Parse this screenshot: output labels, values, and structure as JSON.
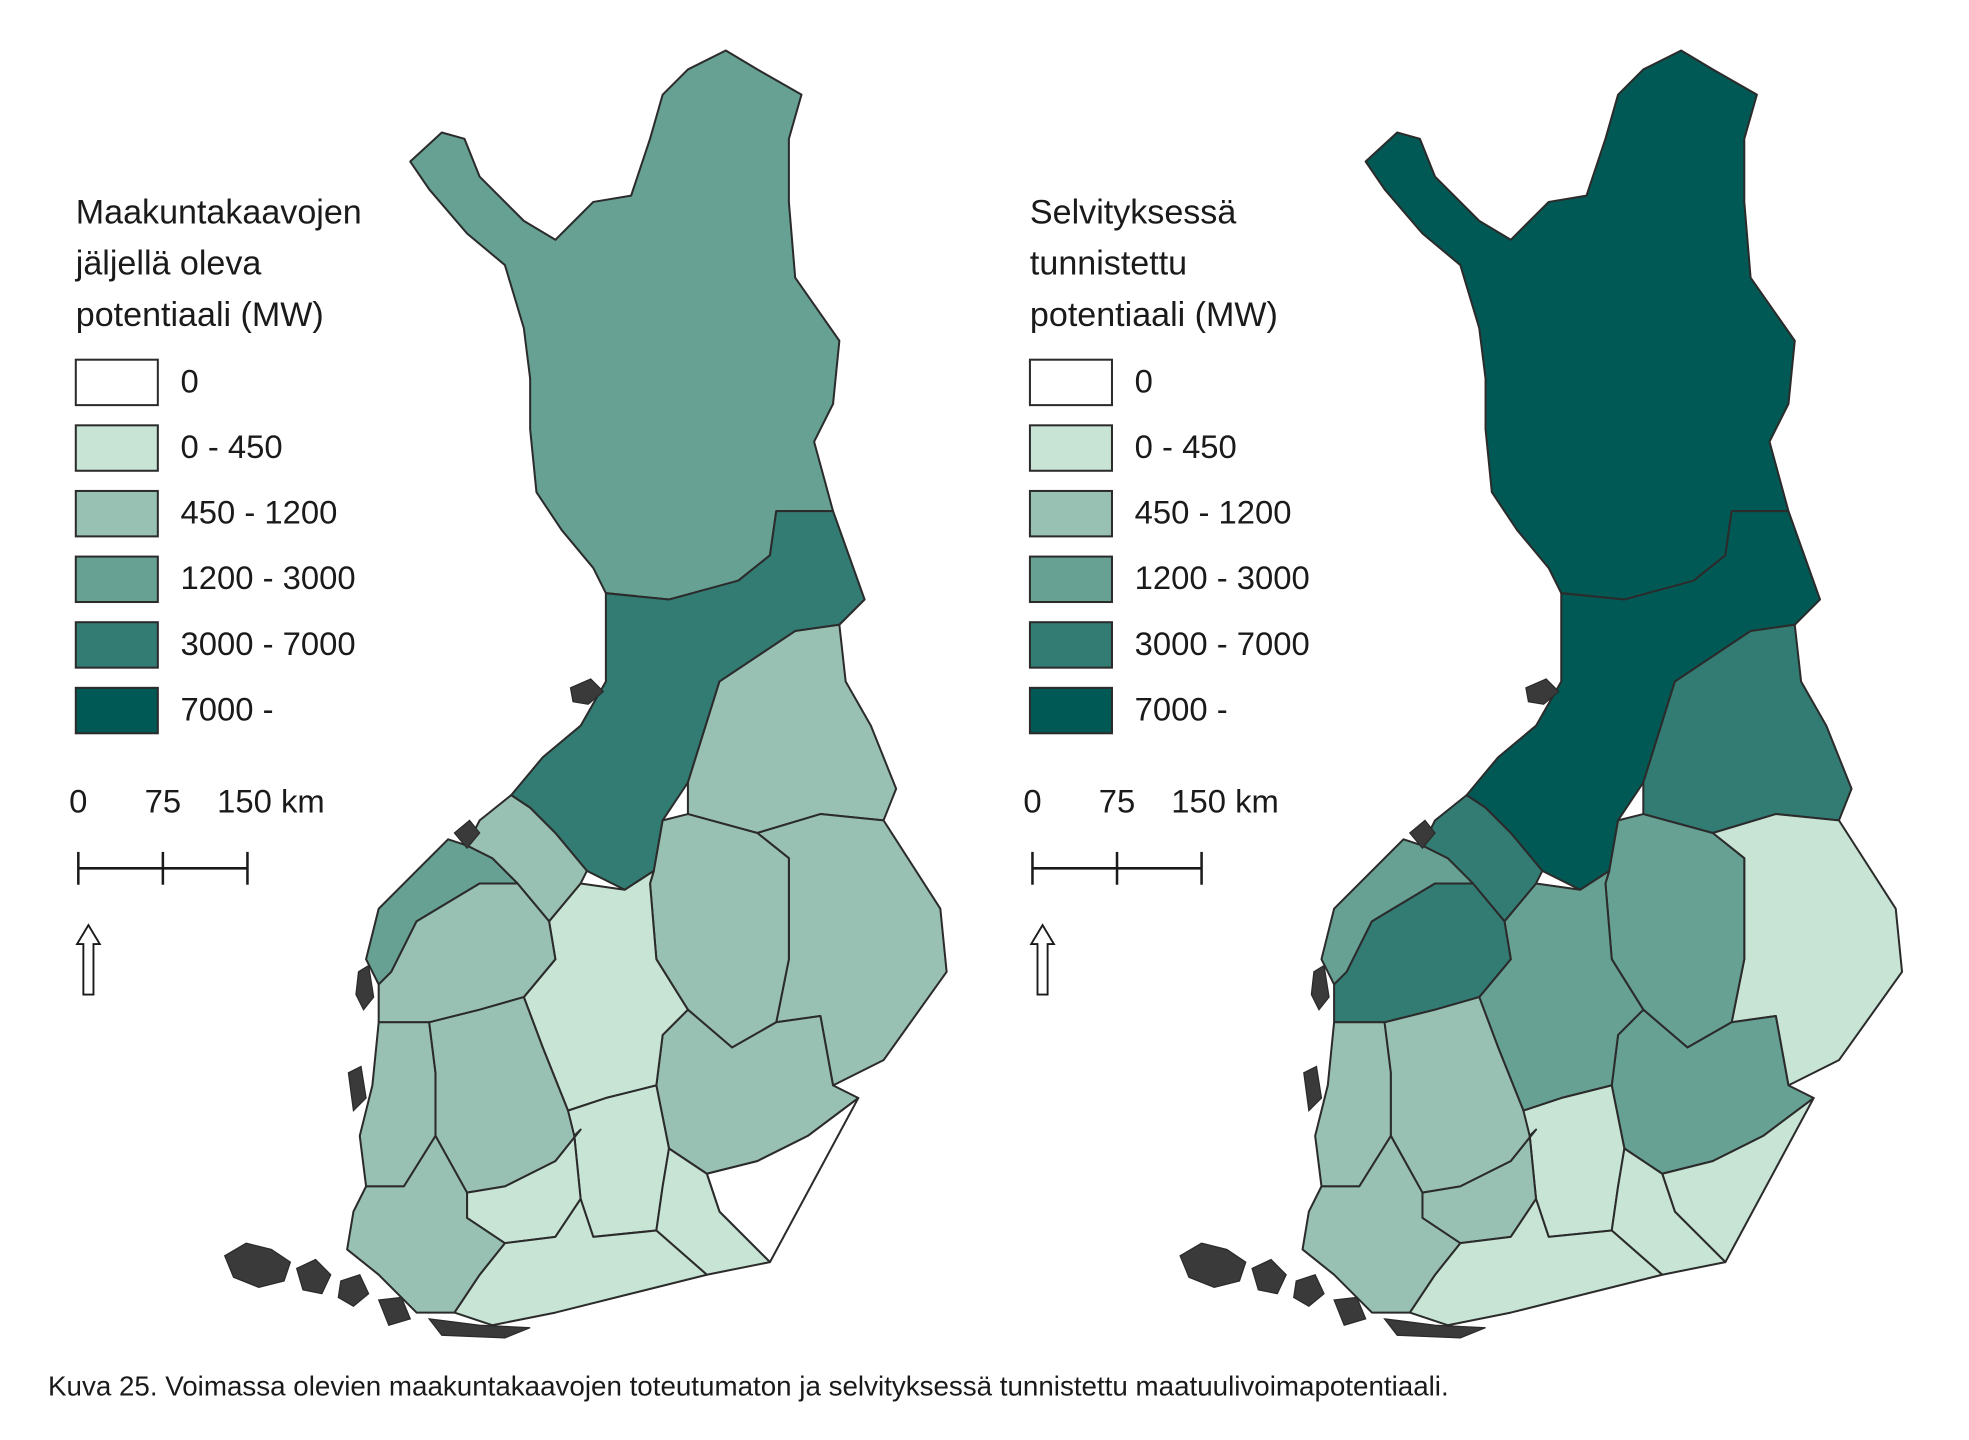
{
  "maps": [
    {
      "legend": {
        "title": [
          "Maakuntakaavojen",
          "jäljellä oleva",
          "potentiaali (MW)"
        ],
        "items": [
          {
            "label": "0",
            "color": "#ffffff"
          },
          {
            "label": "0 - 450",
            "color": "#c7e4d4"
          },
          {
            "label": "450 - 1200",
            "color": "#99c1b3"
          },
          {
            "label": "1200 - 3000",
            "color": "#66a194"
          },
          {
            "label": "3000 - 7000",
            "color": "#337c74"
          },
          {
            "label": "7000 -",
            "color": "#015955"
          }
        ]
      },
      "scale_bar": {
        "labels": [
          "0",
          "75",
          "150 km"
        ]
      }
    },
    {
      "legend": {
        "title": [
          "Selvityksessä",
          "tunnistettu",
          "potentiaali (MW)"
        ],
        "items": [
          {
            "label": "0",
            "color": "#ffffff"
          },
          {
            "label": "0 - 450",
            "color": "#c7e4d4"
          },
          {
            "label": "450 - 1200",
            "color": "#99c1b3"
          },
          {
            "label": "1200 - 3000",
            "color": "#66a194"
          },
          {
            "label": "3000 - 7000",
            "color": "#337c74"
          },
          {
            "label": "7000 -",
            "color": "#015955"
          }
        ]
      },
      "scale_bar": {
        "labels": [
          "0",
          "75",
          "150 km"
        ]
      }
    }
  ],
  "caption": "Kuva 25. Voimassa olevien maakuntakaavojen toteutumaton ja selvityksessä tunnistettu maatuulivoimapotentiaali."
}
